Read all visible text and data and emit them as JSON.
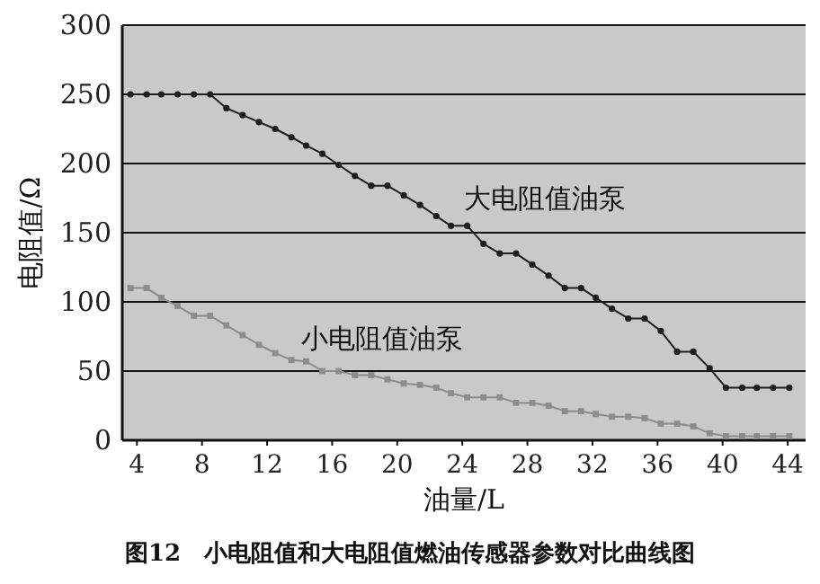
{
  "chart_data": {
    "type": "line",
    "xlabel": "油量/L",
    "ylabel": "电阻值/Ω",
    "annotations": [
      "图12　小电阻值和大电阻值燃油传感器参数对比曲线图"
    ],
    "x": [
      3.6,
      4.6,
      5.5,
      6.5,
      7.5,
      8.5,
      9.5,
      10.5,
      11.5,
      12.5,
      13.5,
      14.4,
      15.4,
      16.4,
      17.4,
      18.4,
      19.4,
      20.4,
      21.4,
      22.4,
      23.3,
      24.3,
      25.3,
      26.3,
      27.3,
      28.3,
      29.3,
      30.3,
      31.3,
      32.2,
      33.2,
      34.2,
      35.2,
      36.2,
      37.2,
      38.2,
      39.2,
      40.2,
      41.2,
      42.1,
      43.1,
      44.1
    ],
    "xlim": [
      3.1,
      45.1
    ],
    "xticks": [
      4,
      8,
      12,
      16,
      20,
      24,
      28,
      32,
      36,
      40,
      44
    ],
    "ylim": [
      0,
      300
    ],
    "yticks": [
      0,
      50,
      100,
      150,
      200,
      250,
      300
    ],
    "grid": "y",
    "line_style": "solid",
    "series": [
      {
        "name": "大电阻值油泵",
        "color": "#1e1e1e",
        "marker": "circle",
        "values": [
          250,
          250,
          250,
          250,
          250,
          250,
          240,
          235,
          230,
          225,
          219,
          213,
          207,
          199,
          191,
          184,
          184,
          177,
          170,
          162,
          155,
          155,
          142,
          135,
          135,
          127,
          119,
          110,
          110,
          103,
          95,
          88,
          88,
          79,
          64,
          64,
          52,
          38,
          38,
          38,
          38,
          38
        ]
      },
      {
        "name": "小电阻值油泵",
        "color": "#8c8c8c",
        "marker": "square",
        "values": [
          110,
          110,
          103,
          97,
          90,
          90,
          83,
          76,
          69,
          63,
          58,
          57,
          50,
          50,
          47,
          47,
          44,
          41,
          40,
          38,
          34,
          31,
          31,
          31,
          27,
          27,
          25,
          21,
          21,
          19,
          17,
          17,
          16,
          12,
          12,
          10,
          5,
          3,
          3,
          3,
          3,
          3
        ]
      }
    ]
  }
}
